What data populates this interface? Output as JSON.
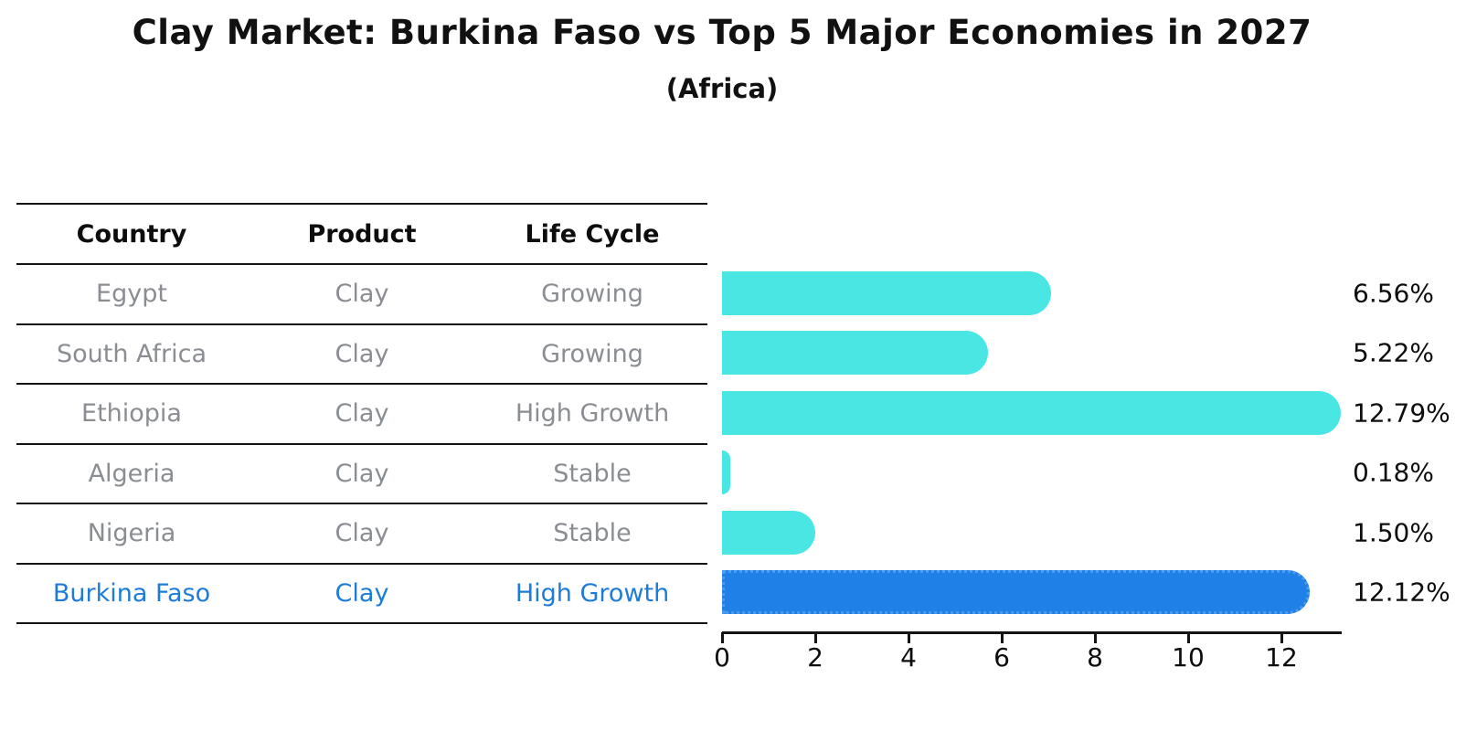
{
  "title": "Clay Market: Burkina Faso vs Top 5 Major Economies in 2027",
  "subtitle": "(Africa)",
  "colors": {
    "bar_default": "#49e6e4",
    "bar_highlight": "#1f80e8",
    "bar_highlight_border": "#4c9bef",
    "highlight_text": "#1e7cd9",
    "table_text": "#8a8d92",
    "axis_line": "#141414"
  },
  "table": {
    "headers": [
      "Country",
      "Product",
      "Life Cycle"
    ],
    "rows": [
      {
        "country": "Egypt",
        "product": "Clay",
        "life_cycle": "Growing",
        "highlight": false
      },
      {
        "country": "South Africa",
        "product": "Clay",
        "life_cycle": "Growing",
        "highlight": false
      },
      {
        "country": "Ethiopia",
        "product": "Clay",
        "life_cycle": "High Growth",
        "highlight": false
      },
      {
        "country": "Algeria",
        "product": "Clay",
        "life_cycle": "Stable",
        "highlight": false
      },
      {
        "country": "Nigeria",
        "product": "Clay",
        "life_cycle": "Stable",
        "highlight": false
      },
      {
        "country": "Burkina Faso",
        "product": "Clay",
        "life_cycle": "High Growth",
        "highlight": true
      }
    ]
  },
  "chart_data": {
    "type": "bar",
    "orientation": "horizontal",
    "title": "Clay Market: Burkina Faso vs Top 5 Major Economies in 2027",
    "subtitle": "(Africa)",
    "categories": [
      "Egypt",
      "South Africa",
      "Ethiopia",
      "Algeria",
      "Nigeria",
      "Burkina Faso"
    ],
    "values": [
      6.56,
      5.22,
      12.79,
      0.18,
      1.5,
      12.12
    ],
    "value_labels": [
      "6.56%",
      "5.22%",
      "12.79%",
      "0.18%",
      "1.50%",
      "12.12%"
    ],
    "highlight_index": 5,
    "xticks": [
      0,
      2,
      4,
      6,
      8,
      10,
      12
    ],
    "xlim": [
      0,
      13.3
    ],
    "xlabel": "",
    "ylabel": "",
    "grid": false,
    "legend": false
  }
}
